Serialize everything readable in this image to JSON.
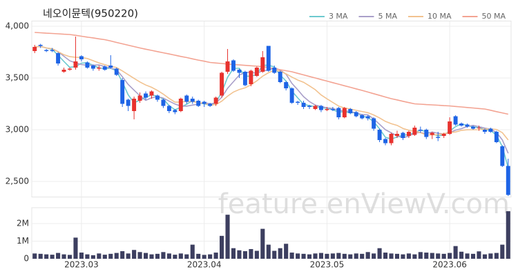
{
  "chart_data": [
    {
      "type": "candlestick",
      "title": "네오이뮨텍(950220)",
      "watermark": "feature.enViewV.com",
      "categories": [
        null,
        null,
        null,
        null,
        null,
        null,
        null,
        null,
        "2023.03",
        null,
        null,
        null,
        null,
        null,
        null,
        null,
        null,
        null,
        null,
        null,
        null,
        null,
        null,
        null,
        null,
        null,
        null,
        null,
        null,
        "2023.04",
        null,
        null,
        null,
        null,
        null,
        null,
        null,
        null,
        null,
        null,
        null,
        null,
        null,
        null,
        null,
        null,
        null,
        null,
        null,
        null,
        "2023.05",
        null,
        null,
        null,
        null,
        null,
        null,
        null,
        null,
        null,
        null,
        null,
        null,
        null,
        null,
        null,
        null,
        null,
        null,
        null,
        null,
        "2023.06",
        null,
        null,
        null,
        null,
        null,
        null,
        null,
        null,
        null,
        null
      ],
      "open": [
        3760,
        3820,
        3770,
        3770,
        3740,
        3560,
        3580,
        3600,
        3710,
        3650,
        3620,
        3590,
        3610,
        3620,
        3590,
        3480,
        3290,
        3180,
        3280,
        3350,
        3330,
        3330,
        3290,
        3230,
        3190,
        3180,
        3330,
        3300,
        3280,
        3270,
        3250,
        3250,
        3330,
        3560,
        3670,
        3580,
        3560,
        3440,
        3520,
        3560,
        3810,
        3600,
        3560,
        3460,
        3400,
        3270,
        3260,
        3230,
        3200,
        3230,
        3190,
        3200,
        3210,
        3120,
        3200,
        3170,
        3140,
        3130,
        3110,
        3000,
        2910,
        2870,
        2940,
        2970,
        2940,
        2950,
        3000,
        3000,
        2950,
        2930,
        2940,
        2960,
        3130,
        3060,
        3050,
        3030,
        3020,
        3000,
        3010,
        2980,
        2840,
        2650
      ],
      "high": [
        3820,
        3830,
        3780,
        3790,
        3750,
        3600,
        3600,
        3900,
        3720,
        3660,
        3630,
        3620,
        3620,
        3720,
        3600,
        3500,
        3300,
        3320,
        3360,
        3370,
        3380,
        3340,
        3300,
        3240,
        3200,
        3310,
        3340,
        3320,
        3290,
        3280,
        3260,
        3320,
        3560,
        3780,
        3680,
        3590,
        3570,
        3580,
        3610,
        3760,
        3810,
        3620,
        3570,
        3470,
        3410,
        3280,
        3280,
        3240,
        3240,
        3240,
        3220,
        3220,
        3220,
        3220,
        3210,
        3180,
        3150,
        3140,
        3120,
        3010,
        2920,
        2970,
        2990,
        2980,
        2990,
        3040,
        3030,
        3010,
        2980,
        2980,
        2970,
        3120,
        3140,
        3070,
        3060,
        3040,
        3040,
        3010,
        3020,
        2990,
        2850,
        2720
      ],
      "low": [
        3740,
        3790,
        3750,
        3750,
        3620,
        3550,
        3570,
        3580,
        3660,
        3590,
        3570,
        3570,
        3570,
        3590,
        3520,
        3220,
        3180,
        3100,
        3260,
        3290,
        3300,
        3270,
        3210,
        3160,
        3150,
        3170,
        3250,
        3250,
        3220,
        3220,
        3220,
        3230,
        3310,
        3540,
        3560,
        3500,
        3420,
        3420,
        3510,
        3550,
        3560,
        3540,
        3450,
        3380,
        3250,
        3240,
        3200,
        3200,
        3190,
        3170,
        3180,
        3180,
        3100,
        3110,
        3150,
        3120,
        3100,
        3090,
        2990,
        2880,
        2850,
        2850,
        2920,
        2900,
        2920,
        2940,
        2970,
        2910,
        2910,
        2890,
        2920,
        2950,
        3040,
        3030,
        3020,
        3000,
        2990,
        2960,
        2970,
        2870,
        2640,
        2360
      ],
      "close": [
        3800,
        3810,
        3760,
        3760,
        3640,
        3580,
        3590,
        3660,
        3680,
        3600,
        3590,
        3600,
        3580,
        3600,
        3530,
        3250,
        3230,
        3300,
        3330,
        3310,
        3370,
        3290,
        3230,
        3180,
        3170,
        3300,
        3270,
        3270,
        3230,
        3250,
        3230,
        3310,
        3550,
        3660,
        3570,
        3550,
        3430,
        3570,
        3600,
        3700,
        3570,
        3550,
        3460,
        3400,
        3260,
        3260,
        3220,
        3220,
        3230,
        3190,
        3200,
        3190,
        3120,
        3210,
        3160,
        3130,
        3110,
        3110,
        3010,
        2900,
        2870,
        2960,
        2960,
        2920,
        2980,
        3020,
        2990,
        2930,
        2970,
        2920,
        2960,
        3080,
        3050,
        3040,
        3030,
        3010,
        3020,
        2980,
        2980,
        2880,
        2650,
        2370
      ],
      "up_color": "#e8322e",
      "down_color": "#1e64e6",
      "series": [
        {
          "name": "3 MA",
          "color": "#6cc9cf",
          "values": [
            3800,
            3805,
            3790,
            3777,
            3720,
            3660,
            3603,
            3610,
            3643,
            3647,
            3623,
            3597,
            3590,
            3593,
            3570,
            3460,
            3337,
            3260,
            3287,
            3313,
            3337,
            3323,
            3297,
            3233,
            3193,
            3217,
            3247,
            3280,
            3257,
            3250,
            3237,
            3263,
            3363,
            3507,
            3593,
            3593,
            3517,
            3517,
            3533,
            3623,
            3623,
            3607,
            3527,
            3470,
            3373,
            3307,
            3247,
            3233,
            3223,
            3213,
            3207,
            3193,
            3170,
            3173,
            3163,
            3167,
            3133,
            3117,
            3077,
            3007,
            2927,
            2910,
            2930,
            2947,
            2953,
            2973,
            2997,
            2980,
            2963,
            2940,
            2950,
            2987,
            3030,
            3057,
            3040,
            3027,
            3020,
            3003,
            2993,
            2947,
            2837,
            2633
          ]
        },
        {
          "name": "5 MA",
          "color": "#a99fc9",
          "values": [
            3800,
            3805,
            3790,
            3783,
            3754,
            3710,
            3666,
            3646,
            3630,
            3622,
            3624,
            3626,
            3610,
            3594,
            3580,
            3512,
            3438,
            3382,
            3328,
            3284,
            3308,
            3320,
            3306,
            3276,
            3248,
            3228,
            3228,
            3238,
            3248,
            3264,
            3250,
            3258,
            3314,
            3400,
            3464,
            3528,
            3552,
            3556,
            3544,
            3570,
            3574,
            3598,
            3576,
            3536,
            3448,
            3386,
            3320,
            3272,
            3238,
            3224,
            3212,
            3206,
            3186,
            3182,
            3176,
            3162,
            3146,
            3144,
            3104,
            3052,
            3000,
            2970,
            2940,
            2922,
            2938,
            2968,
            2974,
            2960,
            2978,
            2966,
            2958,
            2972,
            2996,
            3010,
            3032,
            3042,
            3030,
            3016,
            3004,
            2974,
            2902,
            2772
          ]
        },
        {
          "name": "10 MA",
          "color": "#f2c28f",
          "values": [
            3800,
            3805,
            3790,
            3783,
            3754,
            3725,
            3706,
            3700,
            3698,
            3688,
            3667,
            3646,
            3628,
            3612,
            3601,
            3568,
            3532,
            3496,
            3461,
            3432,
            3410,
            3379,
            3344,
            3302,
            3266,
            3268,
            3274,
            3272,
            3262,
            3256,
            3239,
            3243,
            3276,
            3324,
            3364,
            3389,
            3405,
            3435,
            3472,
            3517,
            3551,
            3575,
            3566,
            3540,
            3509,
            3480,
            3459,
            3424,
            3387,
            3336,
            3299,
            3263,
            3229,
            3210,
            3200,
            3187,
            3176,
            3165,
            3143,
            3114,
            3081,
            3058,
            3042,
            3013,
            2995,
            2984,
            2972,
            2950,
            2950,
            2952,
            2963,
            2973,
            2978,
            2994,
            2999,
            3000,
            3001,
            3006,
            3007,
            3003,
            2972,
            2901
          ]
        },
        {
          "name": "50 MA",
          "color": "#f3a392",
          "values": [
            3940,
            3937,
            3933,
            3930,
            3927,
            3923,
            3920,
            3912,
            3903,
            3895,
            3887,
            3878,
            3870,
            3857,
            3843,
            3830,
            3817,
            3803,
            3790,
            3778,
            3767,
            3755,
            3743,
            3732,
            3720,
            3708,
            3697,
            3685,
            3673,
            3662,
            3650,
            3645,
            3640,
            3635,
            3630,
            3626,
            3622,
            3618,
            3614,
            3610,
            3600,
            3590,
            3580,
            3570,
            3560,
            3545,
            3530,
            3515,
            3500,
            3485,
            3470,
            3455,
            3440,
            3425,
            3410,
            3395,
            3380,
            3364,
            3348,
            3332,
            3316,
            3300,
            3288,
            3275,
            3262,
            3250,
            3247,
            3243,
            3240,
            3237,
            3233,
            3230,
            3225,
            3220,
            3215,
            3210,
            3205,
            3200,
            3188,
            3175,
            3163,
            3150
          ]
        }
      ],
      "ylim": [
        2350,
        4050
      ],
      "yticks": [
        {
          "value": 2500,
          "label": "2,500"
        },
        {
          "value": 3000,
          "label": "3,000"
        },
        {
          "value": 3500,
          "label": "3,500"
        },
        {
          "value": 4000,
          "label": "4,000"
        }
      ],
      "grid": true,
      "legend": "top-right"
    },
    {
      "type": "bar",
      "color": "#3d3f60",
      "values": [
        300000,
        280000,
        250000,
        230000,
        330000,
        250000,
        220000,
        1200000,
        350000,
        250000,
        200000,
        300000,
        230000,
        280000,
        330000,
        430000,
        300000,
        500000,
        380000,
        330000,
        250000,
        280000,
        380000,
        300000,
        230000,
        300000,
        250000,
        800000,
        280000,
        220000,
        250000,
        350000,
        1300000,
        2500000,
        600000,
        480000,
        430000,
        550000,
        450000,
        1700000,
        800000,
        450000,
        600000,
        850000,
        350000,
        300000,
        280000,
        250000,
        300000,
        330000,
        280000,
        300000,
        330000,
        280000,
        250000,
        300000,
        280000,
        380000,
        300000,
        600000,
        350000,
        300000,
        280000,
        250000,
        300000,
        250000,
        380000,
        350000,
        330000,
        300000,
        280000,
        330000,
        720000,
        400000,
        300000,
        280000,
        420000,
        250000,
        300000,
        330000,
        800000,
        2700000
      ],
      "ylim": [
        0,
        2900000
      ],
      "yticks": [
        0,
        {
          "value": 1000000,
          "label": "1M"
        },
        {
          "value": 2000000,
          "label": "2M"
        }
      ],
      "grid": true
    }
  ]
}
